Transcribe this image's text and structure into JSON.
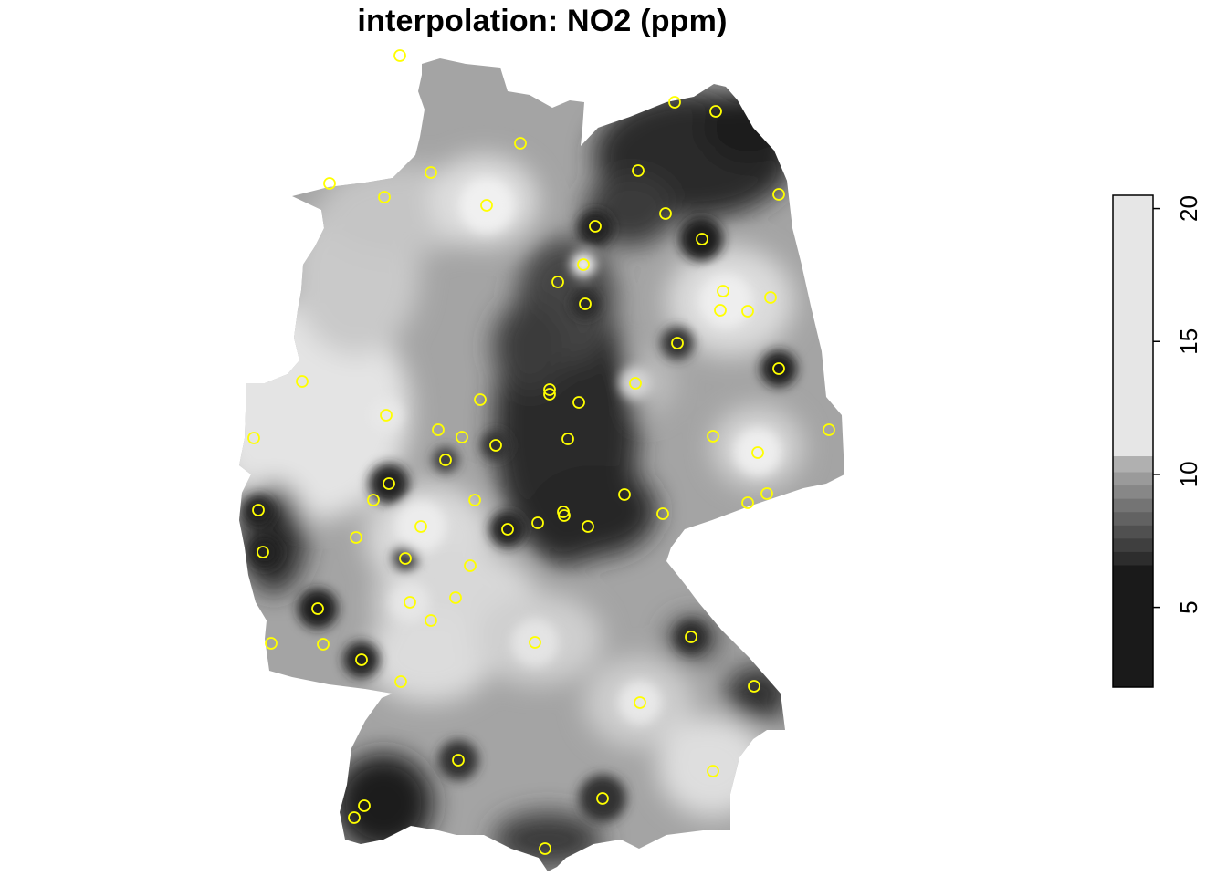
{
  "title": "interpolation: NO2 (ppm)",
  "colors": {
    "station_marker": "#ffff00",
    "background": "#ffffff",
    "lowest": "#1a1a1a",
    "highest": "#e8e8e8"
  },
  "legend": {
    "range": [
      2,
      20.5
    ],
    "ticks": [
      5,
      10,
      15,
      20
    ],
    "tick_labels": [
      "5",
      "10",
      "15",
      "20"
    ],
    "bands": [
      {
        "from": 2.0,
        "to": 6.6,
        "color": "#1a1a1a"
      },
      {
        "from": 6.6,
        "to": 7.1,
        "color": "#2d2d2d"
      },
      {
        "from": 7.1,
        "to": 7.6,
        "color": "#3f3f3f"
      },
      {
        "from": 7.6,
        "to": 8.1,
        "color": "#505050"
      },
      {
        "from": 8.1,
        "to": 8.6,
        "color": "#626262"
      },
      {
        "from": 8.6,
        "to": 9.1,
        "color": "#747474"
      },
      {
        "from": 9.1,
        "to": 9.6,
        "color": "#878787"
      },
      {
        "from": 9.6,
        "to": 10.1,
        "color": "#9a9a9a"
      },
      {
        "from": 10.1,
        "to": 10.7,
        "color": "#b0b0b0"
      },
      {
        "from": 10.7,
        "to": 20.5,
        "color": "#e6e6e6"
      }
    ]
  }
}
